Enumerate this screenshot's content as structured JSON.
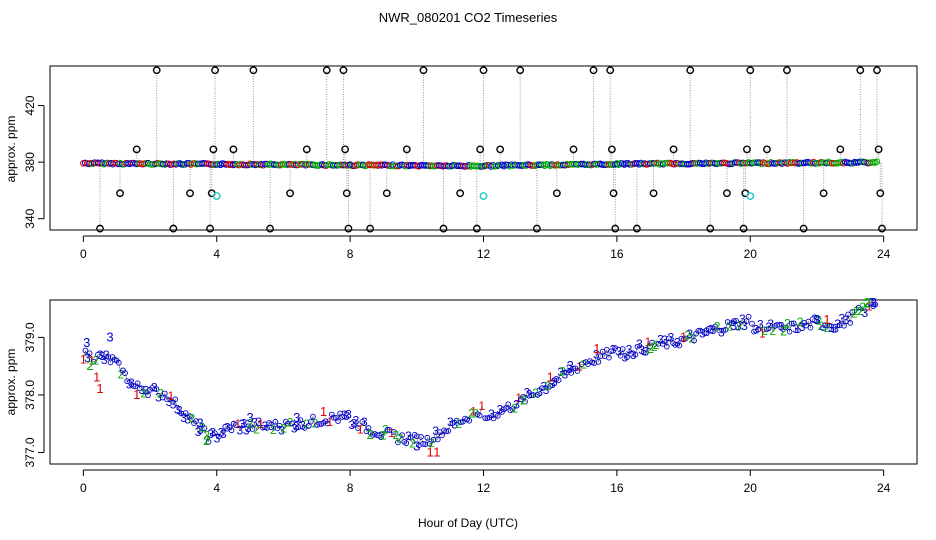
{
  "chart_data": [
    {
      "type": "scatter",
      "title": "NWR_080201  CO2 Timeseries",
      "xlabel": "",
      "ylabel": "approx. ppm",
      "xlim": [
        -1,
        25
      ],
      "ylim": [
        332,
        448
      ],
      "xticks": [
        "0",
        "4",
        "8",
        "12",
        "16",
        "20",
        "24"
      ],
      "yticks": [
        "340",
        "380",
        "420"
      ],
      "series": [
        {
          "name": "baseline",
          "marker": "o",
          "connector": "gray-vertical-dotted",
          "segments": [
            {
              "x": [
                0.0,
                8.0
              ],
              "y": [
                379.2,
                377.9
              ]
            },
            {
              "x": [
                8.0,
                12.0
              ],
              "y": [
                377.9,
                377.2
              ]
            },
            {
              "x": [
                12.0,
                16.0
              ],
              "y": [
                377.4,
                378.6
              ]
            },
            {
              "x": [
                16.0,
                20.0
              ],
              "y": [
                378.7,
                379.3
              ]
            },
            {
              "x": [
                20.0,
                23.8
              ],
              "y": [
                379.3,
                379.8
              ]
            }
          ]
        },
        {
          "name": "spikes",
          "marker": "o",
          "points": [
            {
              "x": 0.5,
              "y": 333
            },
            {
              "x": 1.1,
              "y": 358
            },
            {
              "x": 1.6,
              "y": 389
            },
            {
              "x": 2.2,
              "y": 445
            },
            {
              "x": 2.7,
              "y": 333
            },
            {
              "x": 3.2,
              "y": 358
            },
            {
              "x": 3.8,
              "y": 333
            },
            {
              "x": 3.85,
              "y": 358
            },
            {
              "x": 3.9,
              "y": 389
            },
            {
              "x": 3.95,
              "y": 445
            },
            {
              "x": 4.5,
              "y": 389
            },
            {
              "x": 5.1,
              "y": 445
            },
            {
              "x": 5.6,
              "y": 333
            },
            {
              "x": 6.2,
              "y": 358
            },
            {
              "x": 6.7,
              "y": 389
            },
            {
              "x": 7.3,
              "y": 445
            },
            {
              "x": 7.8,
              "y": 445
            },
            {
              "x": 7.85,
              "y": 389
            },
            {
              "x": 7.9,
              "y": 358
            },
            {
              "x": 7.95,
              "y": 333
            },
            {
              "x": 8.6,
              "y": 333
            },
            {
              "x": 9.1,
              "y": 358
            },
            {
              "x": 9.7,
              "y": 389
            },
            {
              "x": 10.2,
              "y": 445
            },
            {
              "x": 10.8,
              "y": 333
            },
            {
              "x": 11.3,
              "y": 358
            },
            {
              "x": 11.8,
              "y": 333
            },
            {
              "x": 11.9,
              "y": 389
            },
            {
              "x": 12.0,
              "y": 445
            },
            {
              "x": 12.5,
              "y": 389
            },
            {
              "x": 13.1,
              "y": 445
            },
            {
              "x": 13.6,
              "y": 333
            },
            {
              "x": 14.2,
              "y": 358
            },
            {
              "x": 14.7,
              "y": 389
            },
            {
              "x": 15.3,
              "y": 445
            },
            {
              "x": 15.8,
              "y": 445
            },
            {
              "x": 15.85,
              "y": 389
            },
            {
              "x": 15.9,
              "y": 358
            },
            {
              "x": 15.95,
              "y": 333
            },
            {
              "x": 16.6,
              "y": 333
            },
            {
              "x": 17.1,
              "y": 358
            },
            {
              "x": 17.7,
              "y": 389
            },
            {
              "x": 18.2,
              "y": 445
            },
            {
              "x": 18.8,
              "y": 333
            },
            {
              "x": 19.3,
              "y": 358
            },
            {
              "x": 19.8,
              "y": 333
            },
            {
              "x": 19.85,
              "y": 358
            },
            {
              "x": 19.9,
              "y": 389
            },
            {
              "x": 20.0,
              "y": 445
            },
            {
              "x": 20.5,
              "y": 389
            },
            {
              "x": 21.1,
              "y": 445
            },
            {
              "x": 21.6,
              "y": 333
            },
            {
              "x": 22.2,
              "y": 358
            },
            {
              "x": 22.7,
              "y": 389
            },
            {
              "x": 23.3,
              "y": 445
            },
            {
              "x": 23.8,
              "y": 445
            },
            {
              "x": 23.85,
              "y": 389
            },
            {
              "x": 23.9,
              "y": 358
            },
            {
              "x": 23.95,
              "y": 333
            }
          ]
        },
        {
          "name": "cyan-flags",
          "marker": "o",
          "color": "#33cccc",
          "points": [
            {
              "x": 4.0,
              "y": 356
            },
            {
              "x": 12.0,
              "y": 356
            },
            {
              "x": 20.0,
              "y": 356
            }
          ]
        }
      ]
    },
    {
      "type": "scatter",
      "title": "",
      "xlabel": "Hour of Day (UTC)",
      "ylabel": "approx. ppm",
      "xlim": [
        -1,
        25
      ],
      "ylim": [
        376.8,
        379.65
      ],
      "xticks": [
        "0",
        "4",
        "8",
        "12",
        "16",
        "20",
        "24"
      ],
      "yticks": [
        "377.0",
        "378.0",
        "379.0"
      ],
      "series": [
        {
          "name": "level-1",
          "label": "1",
          "color": "#dd0000",
          "points": [
            {
              "x": 0.4,
              "y": 378.3
            },
            {
              "x": 0.5,
              "y": 378.1
            },
            {
              "x": 1.6,
              "y": 378.0
            },
            {
              "x": 10.4,
              "y": 377.0
            },
            {
              "x": 10.6,
              "y": 377.0
            },
            {
              "x": 7.2,
              "y": 377.7
            },
            {
              "x": 14.0,
              "y": 378.3
            },
            {
              "x": 15.4,
              "y": 378.8
            },
            {
              "x": 18.0,
              "y": 379.0
            },
            {
              "x": 22.3,
              "y": 379.3
            }
          ]
        },
        {
          "name": "level-2",
          "label": "2",
          "color": "#00aa00",
          "points": [
            {
              "x": 0.2,
              "y": 378.5
            },
            {
              "x": 3.7,
              "y": 377.2
            },
            {
              "x": 8.6,
              "y": 377.3
            },
            {
              "x": 13.2,
              "y": 377.9
            },
            {
              "x": 17.0,
              "y": 378.8
            },
            {
              "x": 21.0,
              "y": 379.1
            },
            {
              "x": 23.5,
              "y": 379.6
            }
          ]
        },
        {
          "name": "level-3",
          "label": "3",
          "color": "#0000cc",
          "points": [
            {
              "x": 0.1,
              "y": 378.9
            },
            {
              "x": 0.8,
              "y": 379.0
            },
            {
              "x": 3.5,
              "y": 377.5
            },
            {
              "x": 5.0,
              "y": 377.6
            },
            {
              "x": 6.4,
              "y": 377.6
            },
            {
              "x": 10.0,
              "y": 377.1
            },
            {
              "x": 14.6,
              "y": 378.5
            },
            {
              "x": 19.5,
              "y": 379.2
            },
            {
              "x": 22.0,
              "y": 379.3
            },
            {
              "x": 23.7,
              "y": 379.6
            }
          ]
        },
        {
          "name": "trace",
          "marker": "o",
          "color": "#0000cc",
          "segments": [
            {
              "x": [
                0.0,
                0.9,
                1.5,
                2.5,
                3.4,
                3.8,
                4.5,
                5.5,
                6.5,
                7.5,
                7.95
              ],
              "y": [
                378.7,
                378.6,
                378.15,
                378.0,
                377.45,
                377.25,
                377.45,
                377.45,
                377.5,
                377.6,
                377.6
              ]
            },
            {
              "x": [
                8.05,
                8.6,
                9.5,
                10.3,
                11.0,
                11.95
              ],
              "y": [
                377.55,
                377.4,
                377.25,
                377.2,
                377.45,
                377.75
              ]
            },
            {
              "x": [
                12.05,
                13.0,
                14.0,
                15.0,
                15.95
              ],
              "y": [
                377.6,
                377.85,
                378.2,
                378.55,
                378.75
              ]
            },
            {
              "x": [
                16.05,
                17.0,
                18.0,
                19.0,
                19.95
              ],
              "y": [
                378.7,
                378.85,
                378.95,
                379.15,
                379.3
              ]
            },
            {
              "x": [
                20.05,
                21.0,
                22.0,
                22.6,
                23.3,
                23.75
              ],
              "y": [
                379.15,
                379.15,
                379.25,
                379.2,
                379.45,
                379.6
              ]
            }
          ]
        }
      ]
    }
  ]
}
